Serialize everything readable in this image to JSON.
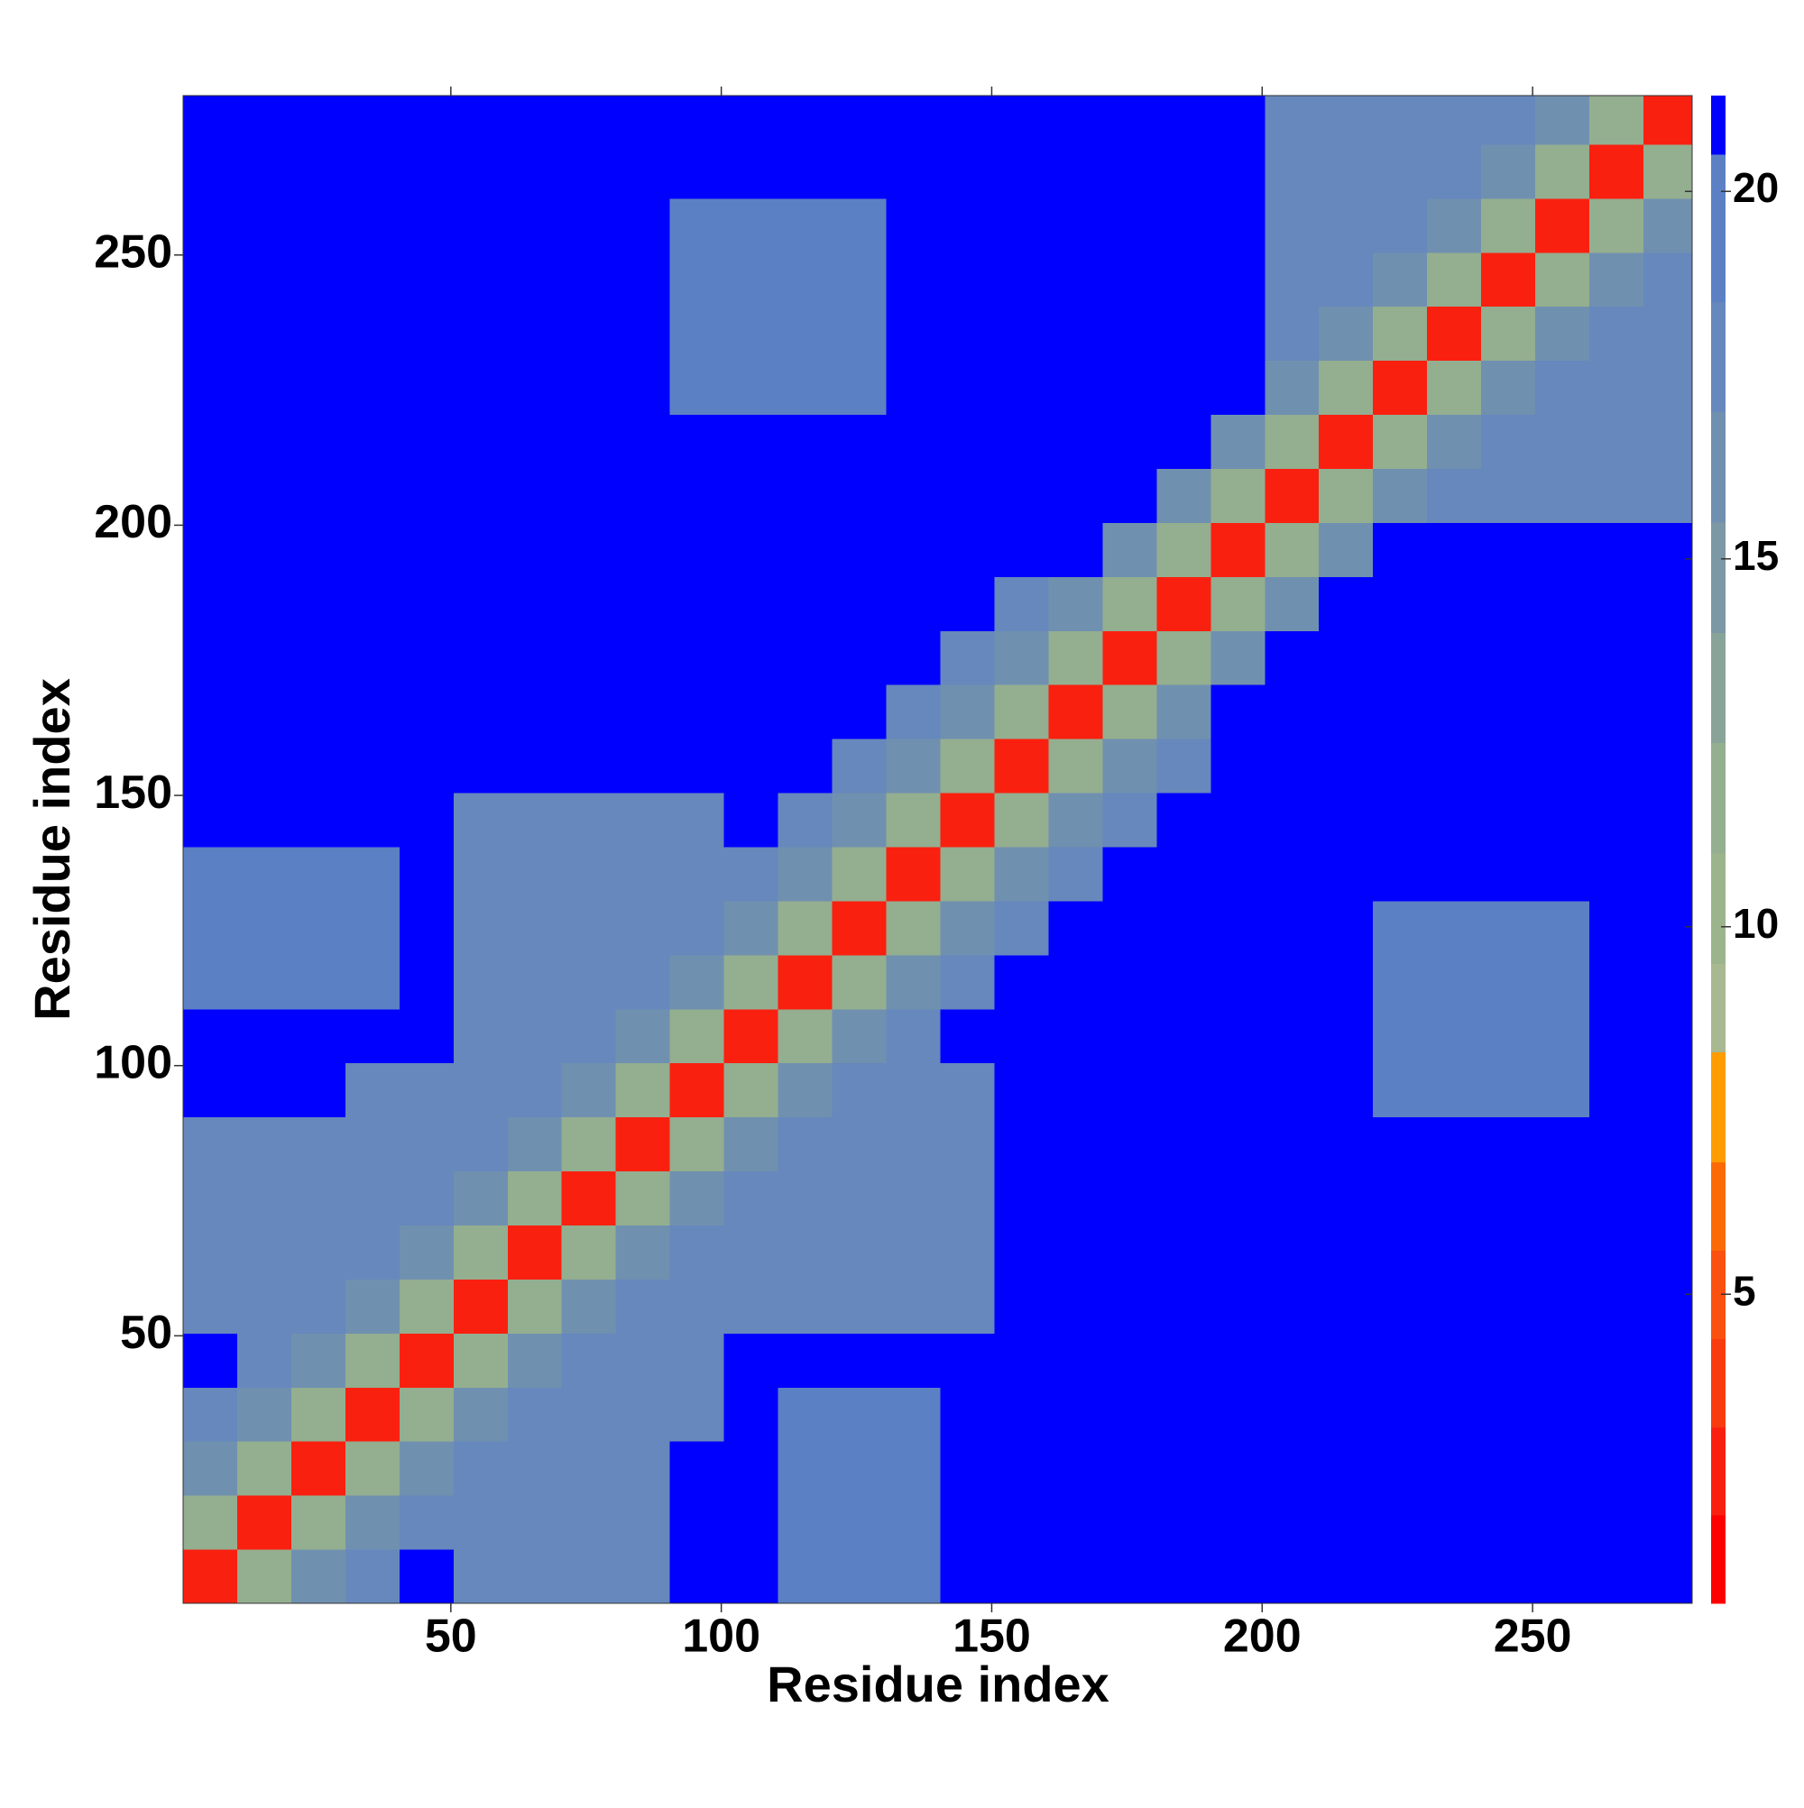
{
  "chart_data": {
    "type": "heatmap",
    "xlabel": "Residue index",
    "ylabel": "Residue index",
    "xbins": [
      0.5,
      10.5,
      20.5,
      30.5,
      40.5,
      50.5,
      60.5,
      70.5,
      80.5,
      90.5,
      100.5,
      110.5,
      120.5,
      130.5,
      140.5,
      150.5,
      160.5,
      170.5,
      180.5,
      190.5,
      200.5,
      210.5,
      220.5,
      230.5,
      240.5,
      250.5,
      260.5,
      270.5,
      279.5
    ],
    "ybins": [
      0.5,
      10.5,
      20.5,
      30.5,
      40.5,
      50.5,
      60.5,
      70.5,
      80.5,
      90.5,
      100.5,
      110.5,
      120.5,
      130.5,
      140.5,
      150.5,
      160.5,
      170.5,
      180.5,
      190.5,
      200.5,
      210.5,
      220.5,
      230.5,
      240.5,
      250.5,
      260.5,
      270.5,
      279.5
    ],
    "xlim": [
      0.5,
      279.5
    ],
    "ylim": [
      0.5,
      279.5
    ],
    "xticks": [
      50,
      100,
      150,
      200,
      250
    ],
    "yticks": [
      50,
      100,
      150,
      200,
      250
    ],
    "colorbar": {
      "lim": [
        0.8,
        21.3
      ],
      "ticks": [
        5,
        10,
        15,
        20
      ],
      "levels": [
        0.8,
        2,
        3.2,
        4.4,
        5.6,
        6.8,
        8.3,
        9.5,
        11,
        12.5,
        14,
        15.5,
        17,
        18.5,
        20.5,
        21.3
      ],
      "colors": [
        "#ff0000",
        "#fa2010",
        "#f83c10",
        "#fa5010",
        "#fc6a08",
        "#ff9c00",
        "#a8b890",
        "#9cb48c",
        "#94ae90",
        "#88a498",
        "#7c98a4",
        "#7090b0",
        "#6688bc",
        "#5c80c4",
        "#0000ff"
      ]
    },
    "z": [
      [
        3,
        12,
        16,
        17,
        21,
        17,
        17,
        17,
        17,
        21,
        21,
        19,
        19,
        19,
        21,
        21,
        21,
        21,
        21,
        21,
        21,
        21,
        21,
        21,
        21,
        21,
        21,
        21
      ],
      [
        12,
        3,
        12,
        16,
        17,
        17,
        17,
        17,
        17,
        21,
        21,
        19,
        19,
        19,
        21,
        21,
        21,
        21,
        21,
        21,
        21,
        21,
        21,
        21,
        21,
        21,
        21,
        21
      ],
      [
        16,
        12,
        3,
        12,
        16,
        17,
        17,
        17,
        17,
        21,
        21,
        19,
        19,
        19,
        21,
        21,
        21,
        21,
        21,
        21,
        21,
        21,
        21,
        21,
        21,
        21,
        21,
        21
      ],
      [
        17,
        16,
        12,
        3,
        12,
        16,
        17,
        17,
        17,
        17,
        21,
        19,
        19,
        19,
        21,
        21,
        21,
        21,
        21,
        21,
        21,
        21,
        21,
        21,
        21,
        21,
        21,
        21
      ],
      [
        21,
        17,
        16,
        12,
        3,
        12,
        16,
        17,
        17,
        17,
        21,
        21,
        21,
        21,
        21,
        21,
        21,
        21,
        21,
        21,
        21,
        21,
        21,
        21,
        21,
        21,
        21,
        21
      ],
      [
        17,
        17,
        17,
        16,
        12,
        3,
        12,
        16,
        17,
        17,
        17,
        17,
        17,
        17,
        17,
        21,
        21,
        21,
        21,
        21,
        21,
        21,
        21,
        21,
        21,
        21,
        21,
        21
      ],
      [
        17,
        17,
        17,
        17,
        16,
        12,
        3,
        12,
        16,
        17,
        17,
        17,
        17,
        17,
        17,
        21,
        21,
        21,
        21,
        21,
        21,
        21,
        21,
        21,
        21,
        21,
        21,
        21
      ],
      [
        17,
        17,
        17,
        17,
        17,
        16,
        12,
        3,
        12,
        16,
        17,
        17,
        17,
        17,
        17,
        21,
        21,
        21,
        21,
        21,
        21,
        21,
        21,
        21,
        21,
        21,
        21,
        21
      ],
      [
        17,
        17,
        17,
        17,
        17,
        17,
        16,
        12,
        3,
        12,
        16,
        17,
        17,
        17,
        17,
        21,
        21,
        21,
        21,
        21,
        21,
        21,
        21,
        21,
        21,
        21,
        21,
        21
      ],
      [
        21,
        21,
        21,
        17,
        17,
        17,
        17,
        16,
        12,
        3,
        12,
        16,
        17,
        17,
        17,
        21,
        21,
        21,
        21,
        21,
        21,
        21,
        19,
        19,
        19,
        19,
        21,
        21
      ],
      [
        21,
        21,
        21,
        21,
        21,
        17,
        17,
        17,
        16,
        12,
        3,
        12,
        16,
        17,
        21,
        21,
        21,
        21,
        21,
        21,
        21,
        21,
        19,
        19,
        19,
        19,
        21,
        21
      ],
      [
        19,
        19,
        19,
        19,
        21,
        17,
        17,
        17,
        17,
        16,
        12,
        3,
        12,
        16,
        17,
        21,
        21,
        21,
        21,
        21,
        21,
        21,
        19,
        19,
        19,
        19,
        21,
        21
      ],
      [
        19,
        19,
        19,
        19,
        21,
        17,
        17,
        17,
        17,
        17,
        16,
        12,
        3,
        12,
        16,
        17,
        21,
        21,
        21,
        21,
        21,
        21,
        19,
        19,
        19,
        19,
        21,
        21
      ],
      [
        19,
        19,
        19,
        19,
        21,
        17,
        17,
        17,
        17,
        17,
        17,
        16,
        12,
        3,
        12,
        16,
        17,
        21,
        21,
        21,
        21,
        21,
        21,
        21,
        21,
        21,
        21,
        21
      ],
      [
        21,
        21,
        21,
        21,
        21,
        17,
        17,
        17,
        17,
        17,
        21,
        17,
        16,
        12,
        3,
        12,
        16,
        17,
        21,
        21,
        21,
        21,
        21,
        21,
        21,
        21,
        21,
        21
      ],
      [
        21,
        21,
        21,
        21,
        21,
        21,
        21,
        21,
        21,
        21,
        21,
        21,
        17,
        16,
        12,
        3,
        12,
        16,
        17,
        21,
        21,
        21,
        21,
        21,
        21,
        21,
        21,
        21
      ],
      [
        21,
        21,
        21,
        21,
        21,
        21,
        21,
        21,
        21,
        21,
        21,
        21,
        21,
        17,
        16,
        12,
        3,
        12,
        16,
        21,
        21,
        21,
        21,
        21,
        21,
        21,
        21,
        21
      ],
      [
        21,
        21,
        21,
        21,
        21,
        21,
        21,
        21,
        21,
        21,
        21,
        21,
        21,
        21,
        17,
        16,
        12,
        3,
        12,
        16,
        21,
        21,
        21,
        21,
        21,
        21,
        21,
        21
      ],
      [
        21,
        21,
        21,
        21,
        21,
        21,
        21,
        21,
        21,
        21,
        21,
        21,
        21,
        21,
        21,
        17,
        16,
        12,
        3,
        12,
        16,
        21,
        21,
        21,
        21,
        21,
        21,
        21
      ],
      [
        21,
        21,
        21,
        21,
        21,
        21,
        21,
        21,
        21,
        21,
        21,
        21,
        21,
        21,
        21,
        21,
        21,
        16,
        12,
        3,
        12,
        16,
        21,
        21,
        21,
        21,
        21,
        21
      ],
      [
        21,
        21,
        21,
        21,
        21,
        21,
        21,
        21,
        21,
        21,
        21,
        21,
        21,
        21,
        21,
        21,
        21,
        21,
        16,
        12,
        3,
        12,
        16,
        17,
        17,
        17,
        17,
        17
      ],
      [
        21,
        21,
        21,
        21,
        21,
        21,
        21,
        21,
        21,
        21,
        21,
        21,
        21,
        21,
        21,
        21,
        21,
        21,
        21,
        16,
        12,
        3,
        12,
        16,
        17,
        17,
        17,
        17
      ],
      [
        21,
        21,
        21,
        21,
        21,
        21,
        21,
        21,
        21,
        19,
        19,
        19,
        19,
        21,
        21,
        21,
        21,
        21,
        21,
        21,
        16,
        12,
        3,
        12,
        16,
        17,
        17,
        17
      ],
      [
        21,
        21,
        21,
        21,
        21,
        21,
        21,
        21,
        21,
        19,
        19,
        19,
        19,
        21,
        21,
        21,
        21,
        21,
        21,
        21,
        17,
        16,
        12,
        3,
        12,
        16,
        17,
        17
      ],
      [
        21,
        21,
        21,
        21,
        21,
        21,
        21,
        21,
        21,
        19,
        19,
        19,
        19,
        21,
        21,
        21,
        21,
        21,
        21,
        21,
        17,
        17,
        16,
        12,
        3,
        12,
        16,
        17
      ],
      [
        21,
        21,
        21,
        21,
        21,
        21,
        21,
        21,
        21,
        19,
        19,
        19,
        19,
        21,
        21,
        21,
        21,
        21,
        21,
        21,
        17,
        17,
        17,
        16,
        12,
        3,
        12,
        16
      ],
      [
        21,
        21,
        21,
        21,
        21,
        21,
        21,
        21,
        21,
        21,
        21,
        21,
        21,
        21,
        21,
        21,
        21,
        21,
        21,
        21,
        17,
        17,
        17,
        17,
        16,
        12,
        3,
        12
      ],
      [
        21,
        21,
        21,
        21,
        21,
        21,
        21,
        21,
        21,
        21,
        21,
        21,
        21,
        21,
        21,
        21,
        21,
        21,
        21,
        21,
        17,
        17,
        17,
        17,
        17,
        16,
        12,
        3
      ]
    ]
  }
}
